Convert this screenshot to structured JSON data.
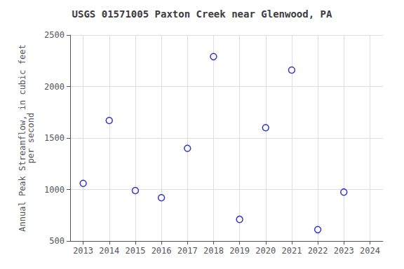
{
  "chart_data": {
    "type": "scatter",
    "title": "USGS 01571005 Paxton Creek near Glenwood, PA",
    "ylabel": "Annual Peak Streamflow, in cubic feet\nper second",
    "x": [
      2013,
      2014,
      2015,
      2016,
      2017,
      2018,
      2019,
      2020,
      2021,
      2022,
      2023
    ],
    "values": [
      1060,
      1670,
      990,
      920,
      1400,
      2290,
      710,
      1600,
      2160,
      610,
      975
    ],
    "xlim": [
      2012.5,
      2024.5
    ],
    "ylim": [
      500,
      2500
    ],
    "xticks": [
      2013,
      2014,
      2015,
      2016,
      2017,
      2018,
      2019,
      2020,
      2021,
      2022,
      2023,
      2024
    ],
    "yticks": [
      500,
      1000,
      1500,
      2000,
      2500
    ],
    "color": "#0000cc",
    "marker": "circle",
    "grid": true
  }
}
